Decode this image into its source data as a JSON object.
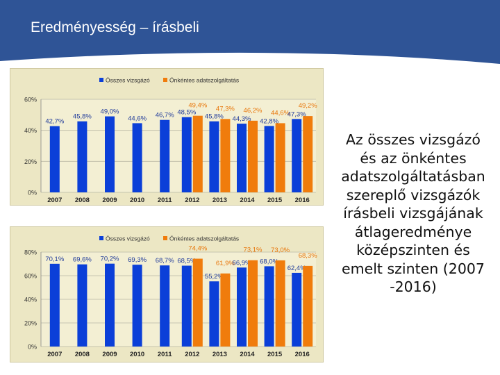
{
  "header": {
    "title": "Eredményesség – írásbeli",
    "background_color": "#2f5496"
  },
  "side_text": "Az összes vizsgázó\nés az önkéntes\nadatszolgáltatásban\nszereplő vizsgázók\nírásbeli vizsgájának\nátlageredménye\nközépszinten és\nemelt szinten (2007\n-2016)",
  "chart_data": [
    {
      "type": "bar",
      "categories": [
        "2007",
        "2008",
        "2009",
        "2010",
        "2011",
        "2012",
        "2013",
        "2014",
        "2015",
        "2016"
      ],
      "series": [
        {
          "name": "Összes vizsgázó",
          "color": "#0b3fd8",
          "values": [
            42.7,
            45.8,
            49.0,
            44.6,
            46.7,
            48.5,
            45.8,
            44.3,
            42.8,
            47.3
          ],
          "labels": [
            "42,7%",
            "45,8%",
            "49,0%",
            "44,6%",
            "46,7%",
            "48,5%",
            "45,8%",
            "44,3%",
            "42,8%",
            "47,3%"
          ]
        },
        {
          "name": "Önkéntes adatszolgáltatás",
          "color": "#f07c0c",
          "values": [
            null,
            null,
            null,
            null,
            null,
            49.4,
            47.3,
            46.2,
            44.6,
            49.2
          ],
          "labels": [
            null,
            null,
            null,
            null,
            null,
            "49,4%",
            "47,3%",
            "46,2%",
            "44,6%",
            "49,2%"
          ]
        }
      ],
      "ylim": [
        0,
        60
      ],
      "yticks": [
        0,
        20,
        40,
        60
      ],
      "ytick_labels": [
        "0%",
        "20%",
        "40%",
        "60%"
      ],
      "grid": true,
      "legend_position": "top"
    },
    {
      "type": "bar",
      "categories": [
        "2007",
        "2008",
        "2009",
        "2010",
        "2011",
        "2012",
        "2013",
        "2014",
        "2015",
        "2016"
      ],
      "series": [
        {
          "name": "Összes vizsgázó",
          "color": "#0b3fd8",
          "values": [
            70.1,
            69.6,
            70.2,
            69.3,
            68.7,
            68.5,
            55.2,
            66.9,
            68.0,
            62.4
          ],
          "labels": [
            "70,1%",
            "69,6%",
            "70,2%",
            "69,3%",
            "68,7%",
            "68,5%",
            "55,2%",
            "66,9%",
            "68,0%",
            "62,4%"
          ]
        },
        {
          "name": "Önkéntes adatszolgáltatás",
          "color": "#f07c0c",
          "values": [
            null,
            null,
            null,
            null,
            null,
            74.4,
            61.9,
            73.1,
            73.0,
            68.3
          ],
          "labels": [
            null,
            null,
            null,
            null,
            null,
            "74,4%",
            "61,9%",
            "73,1%",
            "73,0%",
            "68,3%"
          ]
        }
      ],
      "ylim": [
        0,
        80
      ],
      "yticks": [
        0,
        20,
        40,
        60,
        80
      ],
      "ytick_labels": [
        "0%",
        "20%",
        "40%",
        "60%",
        "80%"
      ],
      "grid": true,
      "legend_position": "top"
    }
  ]
}
